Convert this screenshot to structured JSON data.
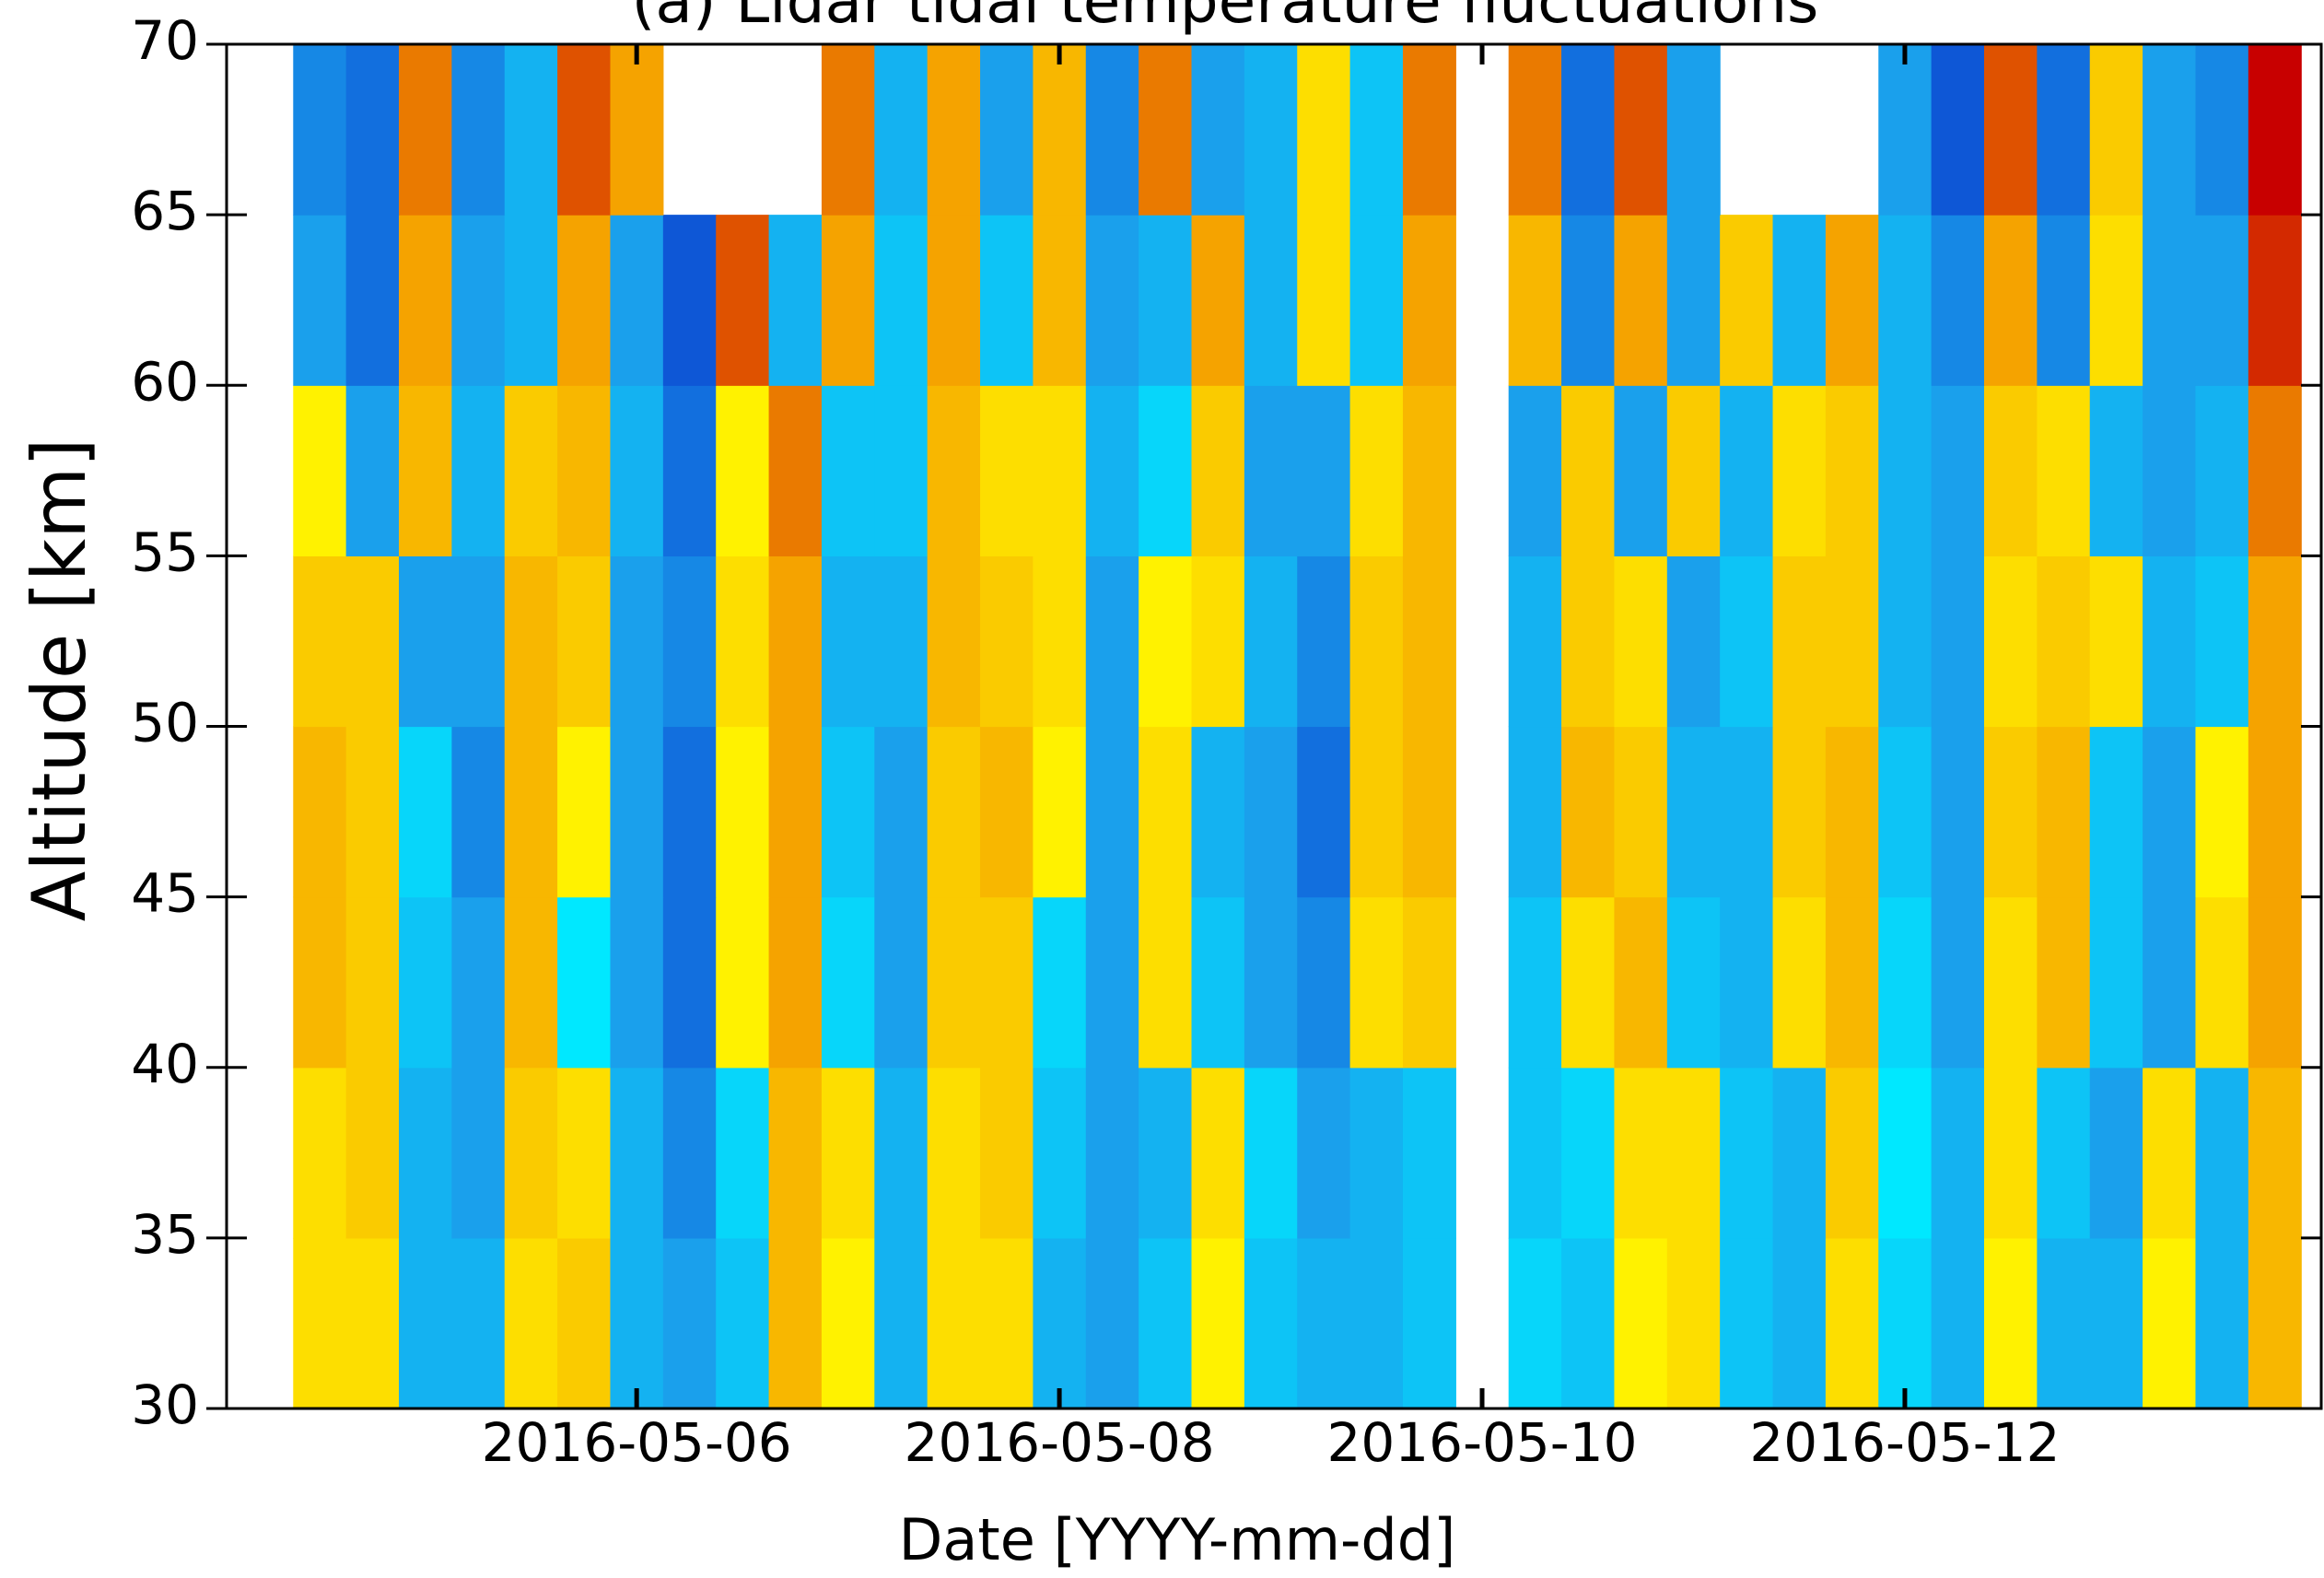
{
  "chart_data": {
    "type": "heatmap",
    "title": "(a) Lidar tidal temperature fluctuations",
    "x_label": "Date  [YYYY-mm-dd]",
    "y_label": "Altitude [km]",
    "xlim": [
      4.06,
      13.97
    ],
    "ylim": [
      30,
      70
    ],
    "xticks": [
      {
        "value": 6,
        "label": "2016-05-06"
      },
      {
        "value": 8,
        "label": "2016-05-08"
      },
      {
        "value": 10,
        "label": "2016-05-10"
      },
      {
        "value": 12,
        "label": "2016-05-12"
      }
    ],
    "yticks": [
      30,
      35,
      40,
      45,
      50,
      55,
      60,
      65,
      70
    ],
    "x": [
      4.5,
      4.75,
      5.0,
      5.25,
      5.5,
      5.75,
      6.0,
      6.25,
      6.5,
      6.75,
      7.0,
      7.25,
      7.5,
      7.75,
      8.0,
      8.25,
      8.5,
      8.75,
      9.0,
      9.25,
      9.5,
      9.75,
      10.0,
      10.25,
      10.5,
      10.75,
      11.0,
      11.25,
      11.5,
      11.75,
      12.0,
      12.25,
      12.5,
      12.75,
      13.0,
      13.25,
      13.5,
      13.75
    ],
    "y": [
      32.5,
      37.5,
      42.5,
      47.5,
      52.5,
      57.5,
      62.5,
      67.5
    ],
    "z": [
      [
        0.3,
        0.3,
        -0.5,
        -0.5,
        0.3,
        0.4,
        -0.5,
        -0.6,
        -0.4,
        0.5,
        0.2,
        -0.5,
        0.3,
        0.3,
        -0.5,
        -0.6,
        -0.4,
        0.2,
        -0.4,
        -0.5,
        -0.5,
        -0.4,
        null,
        -0.3,
        -0.4,
        0.2,
        0.3,
        -0.4,
        -0.5,
        0.3,
        -0.3,
        -0.5,
        0.2,
        -0.5,
        -0.5,
        0.2,
        -0.5,
        0.5
      ],
      [
        0.3,
        0.4,
        -0.5,
        -0.6,
        0.4,
        0.3,
        -0.5,
        -0.7,
        -0.3,
        0.5,
        0.3,
        -0.5,
        0.3,
        0.4,
        -0.4,
        -0.6,
        -0.5,
        0.3,
        -0.3,
        -0.6,
        -0.5,
        -0.4,
        null,
        -0.4,
        -0.3,
        0.3,
        0.3,
        -0.4,
        -0.5,
        0.4,
        -0.2,
        -0.5,
        0.3,
        -0.4,
        -0.6,
        0.3,
        -0.5,
        0.5
      ],
      [
        0.5,
        0.4,
        -0.4,
        -0.6,
        0.5,
        -0.2,
        -0.6,
        -0.8,
        0.2,
        0.6,
        -0.3,
        -0.6,
        0.4,
        0.4,
        -0.3,
        -0.6,
        0.3,
        -0.4,
        -0.6,
        -0.7,
        0.3,
        0.4,
        null,
        -0.4,
        0.3,
        0.5,
        -0.4,
        -0.5,
        0.3,
        0.5,
        -0.3,
        -0.6,
        0.3,
        0.5,
        -0.4,
        -0.6,
        0.3,
        0.6
      ],
      [
        0.5,
        0.4,
        -0.3,
        -0.7,
        0.5,
        0.2,
        -0.6,
        -0.8,
        0.2,
        0.6,
        -0.4,
        -0.6,
        0.4,
        0.5,
        0.2,
        -0.6,
        0.3,
        -0.5,
        -0.6,
        -0.8,
        0.4,
        0.5,
        null,
        -0.5,
        0.5,
        0.4,
        -0.5,
        -0.5,
        0.4,
        0.5,
        -0.4,
        -0.6,
        0.4,
        0.5,
        -0.4,
        -0.6,
        0.2,
        0.6
      ],
      [
        0.4,
        0.4,
        -0.6,
        -0.6,
        0.5,
        0.4,
        -0.6,
        -0.7,
        0.3,
        0.6,
        -0.5,
        -0.5,
        0.5,
        0.4,
        0.3,
        -0.6,
        0.2,
        0.3,
        -0.5,
        -0.7,
        0.4,
        0.5,
        null,
        -0.5,
        0.4,
        0.3,
        -0.6,
        -0.4,
        0.4,
        0.4,
        -0.5,
        -0.6,
        0.3,
        0.4,
        0.3,
        -0.5,
        -0.4,
        0.6
      ],
      [
        0.2,
        -0.6,
        0.5,
        -0.5,
        0.4,
        0.5,
        -0.5,
        -0.8,
        0.2,
        0.7,
        -0.4,
        -0.4,
        0.5,
        0.3,
        0.3,
        -0.5,
        -0.3,
        0.4,
        -0.6,
        -0.6,
        0.3,
        0.5,
        null,
        -0.6,
        0.4,
        -0.6,
        0.4,
        -0.5,
        0.3,
        0.4,
        -0.5,
        -0.6,
        0.4,
        0.3,
        -0.5,
        -0.6,
        -0.5,
        0.7
      ],
      [
        -0.6,
        -0.8,
        0.6,
        -0.6,
        -0.5,
        0.6,
        -0.6,
        -0.9,
        0.8,
        -0.5,
        0.6,
        -0.4,
        0.6,
        -0.4,
        0.5,
        -0.6,
        -0.5,
        0.6,
        -0.5,
        0.3,
        -0.4,
        0.6,
        null,
        0.5,
        -0.7,
        0.6,
        -0.6,
        0.4,
        -0.5,
        0.6,
        -0.5,
        -0.7,
        0.6,
        -0.7,
        0.3,
        -0.6,
        -0.6,
        0.9
      ],
      [
        -0.7,
        -0.8,
        0.7,
        -0.7,
        -0.5,
        0.8,
        0.6,
        null,
        null,
        null,
        0.7,
        -0.5,
        0.6,
        -0.6,
        0.5,
        -0.7,
        0.7,
        -0.6,
        -0.5,
        0.3,
        -0.4,
        0.7,
        null,
        0.7,
        -0.8,
        0.8,
        -0.6,
        null,
        null,
        null,
        -0.6,
        -0.9,
        0.8,
        -0.8,
        0.4,
        -0.6,
        -0.7,
        1.0
      ]
    ],
    "clim": [
      -1,
      1
    ],
    "colormap": [
      "#0a3fcf",
      "#1aa0ec",
      "#00e8ff",
      "#fff200",
      "#f5a300",
      "#c80000"
    ]
  }
}
